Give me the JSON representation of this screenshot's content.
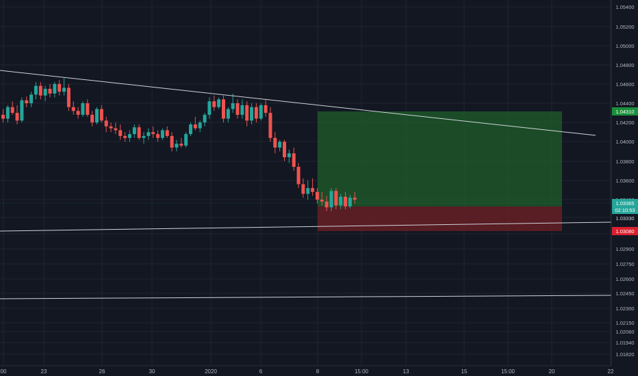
{
  "colors": {
    "background": "#131722",
    "grid": "#1f2431",
    "axis_text": "#b2b5be",
    "up": "#26a69a",
    "down": "#ef5350",
    "trendline": "#d1d4dc",
    "target_zone": "#1f5f2a",
    "stop_zone": "#6b1f26",
    "target_label": "#1b8f3a",
    "current_label": "#26a69a",
    "stop_label": "#d9202f"
  },
  "chart_data": {
    "type": "candlestick",
    "price_ticks": [
      "1.05400",
      "1.05200",
      "1.05000",
      "1.04800",
      "1.04600",
      "1.04400",
      "1.04200",
      "1.04000",
      "1.03800",
      "1.03600",
      "1.03400",
      "1.03330",
      "1.03080",
      "1.02900",
      "1.02750",
      "1.02600",
      "1.02450",
      "1.02300",
      "1.02150",
      "1.02060",
      "1.01940",
      "1.01820"
    ],
    "time_ticks": [
      "00",
      "23",
      "26",
      "30",
      "2020",
      "6",
      "8",
      "15:00",
      "13",
      "15",
      "15:00",
      "20",
      "22"
    ],
    "price_labels": {
      "target": "1.04310",
      "current": "1.03365",
      "countdown": "02:10:53",
      "entry": "1.03330",
      "stop": "1.03080"
    },
    "candles_ohlc": [
      [
        1.0428,
        1.0434,
        1.042,
        1.0424
      ],
      [
        1.0424,
        1.0438,
        1.042,
        1.0436
      ],
      [
        1.0436,
        1.0442,
        1.0428,
        1.043
      ],
      [
        1.043,
        1.0438,
        1.0418,
        1.0422
      ],
      [
        1.0422,
        1.0446,
        1.042,
        1.0443
      ],
      [
        1.0443,
        1.0447,
        1.0436,
        1.044
      ],
      [
        1.044,
        1.0452,
        1.0436,
        1.0449
      ],
      [
        1.0449,
        1.0462,
        1.0444,
        1.0458
      ],
      [
        1.0458,
        1.0462,
        1.0444,
        1.0448
      ],
      [
        1.0448,
        1.0458,
        1.0442,
        1.0455
      ],
      [
        1.0455,
        1.046,
        1.0446,
        1.045
      ],
      [
        1.045,
        1.0462,
        1.0446,
        1.046
      ],
      [
        1.046,
        1.0464,
        1.0448,
        1.0452
      ],
      [
        1.0452,
        1.0466,
        1.0448,
        1.0456
      ],
      [
        1.0456,
        1.046,
        1.0432,
        1.0436
      ],
      [
        1.0436,
        1.0442,
        1.0428,
        1.0432
      ],
      [
        1.0432,
        1.0436,
        1.0424,
        1.0428
      ],
      [
        1.0428,
        1.0442,
        1.0426,
        1.044
      ],
      [
        1.044,
        1.0444,
        1.0426,
        1.0428
      ],
      [
        1.0428,
        1.0432,
        1.0416,
        1.042
      ],
      [
        1.042,
        1.0436,
        1.0418,
        1.0434
      ],
      [
        1.0434,
        1.0438,
        1.042,
        1.0422
      ],
      [
        1.0422,
        1.0426,
        1.041,
        1.0416
      ],
      [
        1.0416,
        1.042,
        1.041,
        1.0414
      ],
      [
        1.0414,
        1.042,
        1.0408,
        1.0412
      ],
      [
        1.0412,
        1.0418,
        1.0402,
        1.0406
      ],
      [
        1.0406,
        1.041,
        1.04,
        1.0404
      ],
      [
        1.0404,
        1.0412,
        1.04,
        1.0408
      ],
      [
        1.0408,
        1.0418,
        1.0404,
        1.0415
      ],
      [
        1.0415,
        1.0418,
        1.0402,
        1.0404
      ],
      [
        1.0404,
        1.041,
        1.0398,
        1.0406
      ],
      [
        1.0406,
        1.0414,
        1.0402,
        1.041
      ],
      [
        1.041,
        1.0416,
        1.0404,
        1.0408
      ],
      [
        1.0408,
        1.0412,
        1.04,
        1.0404
      ],
      [
        1.0404,
        1.0414,
        1.0402,
        1.0412
      ],
      [
        1.0412,
        1.0416,
        1.0404,
        1.0406
      ],
      [
        1.0406,
        1.041,
        1.039,
        1.0394
      ],
      [
        1.0394,
        1.0402,
        1.039,
        1.0398
      ],
      [
        1.0398,
        1.0404,
        1.0394,
        1.0396
      ],
      [
        1.0396,
        1.041,
        1.0394,
        1.0408
      ],
      [
        1.0408,
        1.042,
        1.0406,
        1.0418
      ],
      [
        1.0418,
        1.0426,
        1.0412,
        1.0414
      ],
      [
        1.0414,
        1.0422,
        1.041,
        1.042
      ],
      [
        1.042,
        1.043,
        1.0416,
        1.0428
      ],
      [
        1.0428,
        1.0446,
        1.0424,
        1.0442
      ],
      [
        1.0442,
        1.0448,
        1.0432,
        1.0436
      ],
      [
        1.0436,
        1.0446,
        1.0434,
        1.0444
      ],
      [
        1.0444,
        1.0448,
        1.042,
        1.0424
      ],
      [
        1.0424,
        1.0436,
        1.042,
        1.0434
      ],
      [
        1.0434,
        1.045,
        1.043,
        1.044
      ],
      [
        1.044,
        1.0444,
        1.0424,
        1.0428
      ],
      [
        1.0428,
        1.0444,
        1.0424,
        1.0438
      ],
      [
        1.0438,
        1.0442,
        1.0416,
        1.0422
      ],
      [
        1.0422,
        1.044,
        1.0418,
        1.0436
      ],
      [
        1.0436,
        1.044,
        1.042,
        1.0424
      ],
      [
        1.0424,
        1.044,
        1.0422,
        1.0438
      ],
      [
        1.0438,
        1.0444,
        1.0426,
        1.043
      ],
      [
        1.043,
        1.0436,
        1.04,
        1.0404
      ],
      [
        1.0404,
        1.041,
        1.0388,
        1.0394
      ],
      [
        1.0394,
        1.0402,
        1.039,
        1.04
      ],
      [
        1.04,
        1.0402,
        1.038,
        1.0384
      ],
      [
        1.0384,
        1.0392,
        1.0378,
        1.0388
      ],
      [
        1.0388,
        1.0394,
        1.037,
        1.0374
      ],
      [
        1.0374,
        1.0378,
        1.0352,
        1.0356
      ],
      [
        1.0356,
        1.0362,
        1.0342,
        1.0346
      ],
      [
        1.0346,
        1.036,
        1.034,
        1.0352
      ],
      [
        1.0352,
        1.0362,
        1.0344,
        1.0348
      ],
      [
        1.0348,
        1.0352,
        1.0336,
        1.034
      ],
      [
        1.034,
        1.0348,
        1.0334,
        1.0338
      ],
      [
        1.0338,
        1.0344,
        1.0328,
        1.0332
      ],
      [
        1.0332,
        1.0352,
        1.0328,
        1.0349
      ],
      [
        1.0349,
        1.0352,
        1.033,
        1.0334
      ],
      [
        1.0334,
        1.0346,
        1.033,
        1.0343
      ],
      [
        1.0343,
        1.0348,
        1.033,
        1.0333
      ],
      [
        1.0333,
        1.0345,
        1.0331,
        1.0342
      ],
      [
        1.0342,
        1.0348,
        1.0336,
        1.034
      ]
    ]
  }
}
